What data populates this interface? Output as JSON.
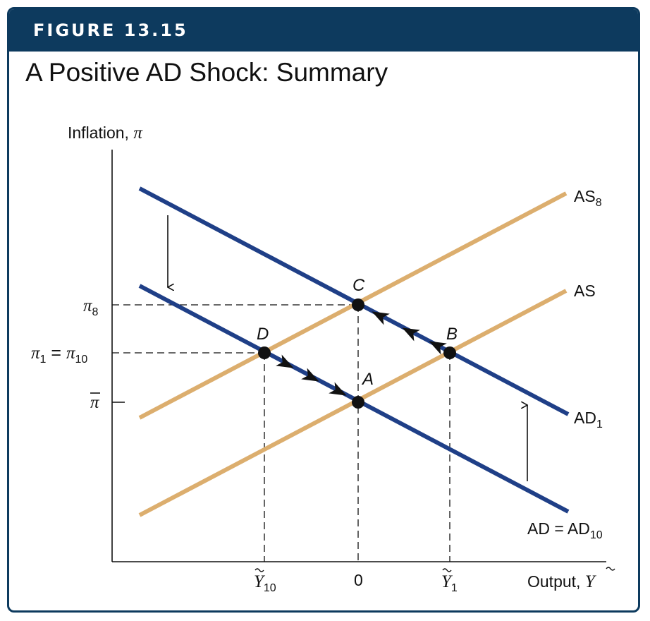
{
  "figure": {
    "label": "FIGURE 13.15",
    "title": "A Positive AD Shock: Summary"
  },
  "axes": {
    "y_label_text": "Inflation, ",
    "y_label_symbol": "π",
    "x_label_text": "Output, ",
    "x_label_symbol": "Y"
  },
  "y_ticks": {
    "pi8": {
      "symbol": "π",
      "sub": "8"
    },
    "pi1": {
      "symbol": "π",
      "sub1": "1",
      "eq": " = ",
      "symbol2": "π",
      "sub2": "10"
    },
    "pibar": {
      "symbol": "π"
    }
  },
  "x_ticks": {
    "y10": {
      "symbol": "Y",
      "sub": "10"
    },
    "zero": "0",
    "y1": {
      "symbol": "Y",
      "sub": "1"
    }
  },
  "curves": {
    "as8": {
      "name": "AS",
      "sub": "8"
    },
    "as": {
      "name": "AS"
    },
    "ad1": {
      "name": "AD",
      "sub": "1"
    },
    "ad": {
      "name": "AD = AD",
      "sub": "10"
    }
  },
  "points": {
    "a": "A",
    "b": "B",
    "c": "C",
    "d": "D"
  },
  "colors": {
    "header": "#0d3a5e",
    "ad_curve": "#1f3f87",
    "as_curve": "#dcae6e"
  }
}
